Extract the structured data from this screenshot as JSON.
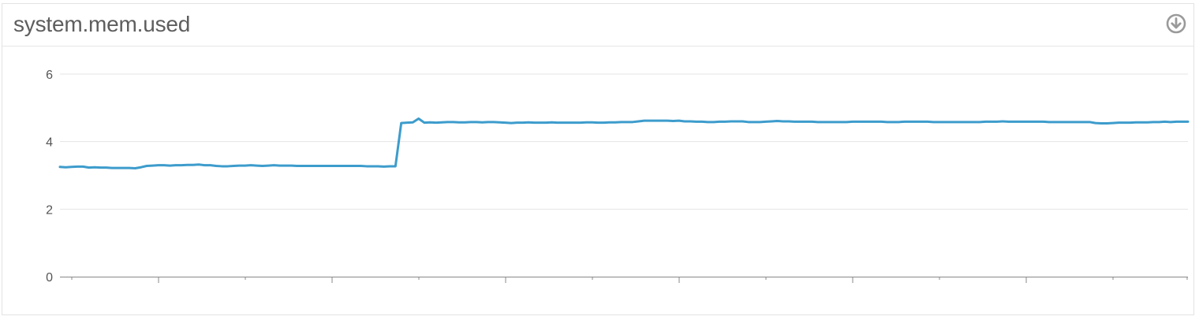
{
  "widget": {
    "title": "system.mem.used",
    "export_icon": "download-circle-icon"
  },
  "colors": {
    "series": "#3d9ccc",
    "grid": "#e4e4e4",
    "axis": "#888888",
    "title": "#5e5e5e",
    "icon": "#9a9a9a"
  },
  "chart_data": {
    "type": "line",
    "title": "system.mem.used",
    "xlabel": "",
    "ylabel": "",
    "ylim": [
      0,
      6.6
    ],
    "yticks": [
      0,
      2,
      4,
      6
    ],
    "grid": true,
    "legend": "none",
    "x_tick_labels": [],
    "series": [
      {
        "values": [
          3.25,
          3.24,
          3.25,
          3.26,
          3.26,
          3.23,
          3.24,
          3.23,
          3.23,
          3.22,
          3.22,
          3.22,
          3.22,
          3.21,
          3.24,
          3.28,
          3.29,
          3.3,
          3.3,
          3.29,
          3.3,
          3.3,
          3.31,
          3.31,
          3.32,
          3.3,
          3.3,
          3.28,
          3.27,
          3.27,
          3.28,
          3.29,
          3.29,
          3.3,
          3.29,
          3.28,
          3.29,
          3.3,
          3.29,
          3.29,
          3.29,
          3.28,
          3.28,
          3.28,
          3.28,
          3.28,
          3.28,
          3.28,
          3.28,
          3.28,
          3.28,
          3.28,
          3.28,
          3.27,
          3.27,
          3.27,
          3.26,
          3.27,
          3.27,
          4.55,
          4.56,
          4.57,
          4.68,
          4.56,
          4.57,
          4.56,
          4.57,
          4.58,
          4.58,
          4.57,
          4.57,
          4.58,
          4.58,
          4.57,
          4.58,
          4.58,
          4.57,
          4.56,
          4.55,
          4.56,
          4.56,
          4.57,
          4.56,
          4.56,
          4.56,
          4.57,
          4.56,
          4.56,
          4.56,
          4.56,
          4.56,
          4.57,
          4.57,
          4.56,
          4.56,
          4.57,
          4.57,
          4.58,
          4.58,
          4.58,
          4.6,
          4.62,
          4.62,
          4.62,
          4.62,
          4.62,
          4.61,
          4.62,
          4.6,
          4.6,
          4.59,
          4.59,
          4.58,
          4.58,
          4.59,
          4.59,
          4.6,
          4.6,
          4.6,
          4.58,
          4.58,
          4.58,
          4.59,
          4.6,
          4.61,
          4.6,
          4.6,
          4.59,
          4.59,
          4.59,
          4.59,
          4.58,
          4.58,
          4.58,
          4.58,
          4.58,
          4.58,
          4.59,
          4.59,
          4.59,
          4.59,
          4.59,
          4.59,
          4.58,
          4.58,
          4.58,
          4.59,
          4.59,
          4.59,
          4.59,
          4.59,
          4.58,
          4.58,
          4.58,
          4.58,
          4.58,
          4.58,
          4.58,
          4.58,
          4.58,
          4.59,
          4.59,
          4.59,
          4.6,
          4.59,
          4.59,
          4.59,
          4.59,
          4.59,
          4.59,
          4.59,
          4.58,
          4.58,
          4.58,
          4.58,
          4.58,
          4.58,
          4.58,
          4.58,
          4.55,
          4.54,
          4.54,
          4.55,
          4.56,
          4.56,
          4.56,
          4.57,
          4.57,
          4.57,
          4.58,
          4.58,
          4.59,
          4.58,
          4.59,
          4.59,
          4.59
        ]
      }
    ]
  }
}
